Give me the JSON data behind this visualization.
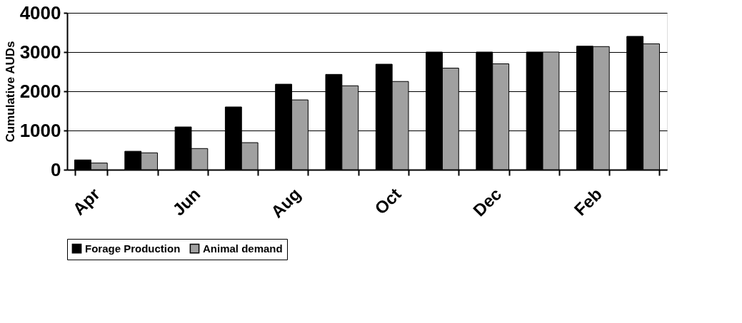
{
  "chart_data": {
    "type": "bar",
    "ylabel": "Cumulative AUDs",
    "categories": [
      "Apr",
      null,
      "Jun",
      null,
      "Aug",
      null,
      "Oct",
      null,
      "Dec",
      null,
      "Feb",
      null
    ],
    "series": [
      {
        "name": "Forage Production",
        "color": "#000000",
        "values": [
          250,
          470,
          1090,
          1600,
          2180,
          2430,
          2690,
          3000,
          3000,
          3000,
          3150,
          3400
        ]
      },
      {
        "name": "Animal demand",
        "color": "#a0a0a0",
        "values": [
          170,
          430,
          540,
          690,
          1780,
          2140,
          2250,
          2590,
          2700,
          3000,
          3140,
          3210
        ]
      }
    ],
    "ylim": [
      0,
      4000
    ],
    "yticks": [
      0,
      1000,
      2000,
      3000,
      4000
    ],
    "grid": "y",
    "legend": "bottom"
  }
}
